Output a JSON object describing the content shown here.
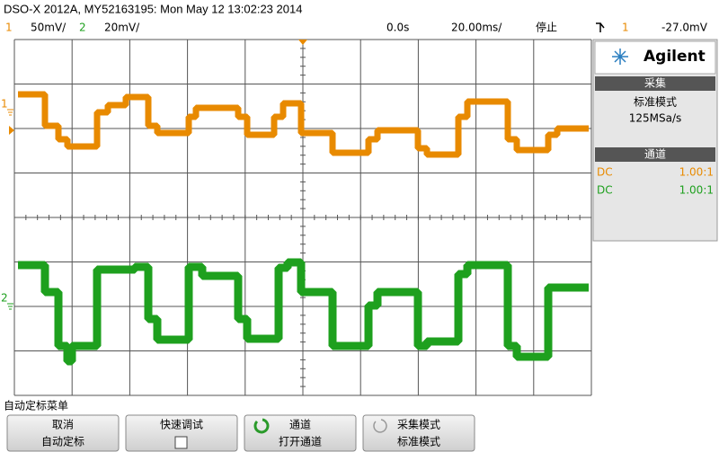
{
  "header": {
    "title": "DSO-X 2012A, MY52163195: Mon May 12 13:02:23 2014",
    "ch1_label": "1",
    "ch1_scale": "50mV/",
    "ch2_label": "2",
    "ch2_scale": "20mV/",
    "time_delay": "0.0s",
    "time_scale": "20.00ms/",
    "run_state": "停止",
    "trigger_source": "1",
    "trigger_level": "-27.0mV"
  },
  "markers": {
    "ch1": "1",
    "ch2": "2"
  },
  "side_panel": {
    "brand": "Agilent",
    "acquire_title": "采集",
    "acquire_mode": "标准模式",
    "sample_rate": "125MSa/s",
    "channels_title": "通道",
    "channels": [
      {
        "coupling": "DC",
        "probe": "1.00:1"
      },
      {
        "coupling": "DC",
        "probe": "1.00:1"
      }
    ]
  },
  "menu": {
    "title": "自动定标菜单",
    "softkeys": [
      {
        "label": "取消",
        "value": "自动定标"
      },
      {
        "label": "快速调试"
      },
      {
        "label": "通道",
        "value": "打开通道"
      },
      {
        "label": "采集模式",
        "value": "标准模式"
      }
    ]
  }
}
